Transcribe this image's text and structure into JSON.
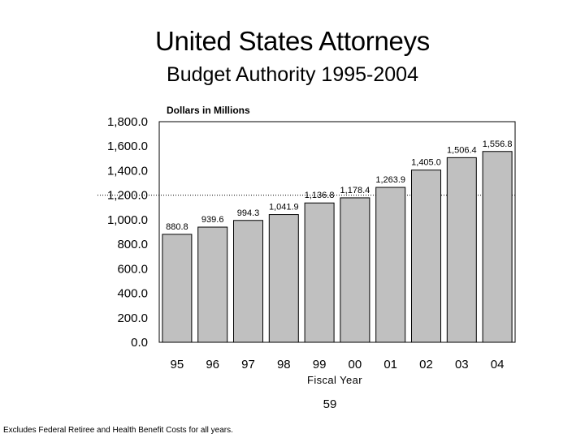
{
  "slide": {
    "title": "United States Attorneys",
    "page_number": "59",
    "footnote": "Excludes Federal Retiree and Health Benefit Costs for all years."
  },
  "chart_data": {
    "type": "bar",
    "title": "United States Attorneys",
    "subtitle": "Budget Authority 1995-2004",
    "units_label": "Dollars in Millions",
    "xlabel": "Fiscal Year",
    "ylabel": "",
    "categories": [
      "95",
      "96",
      "97",
      "98",
      "99",
      "00",
      "01",
      "02",
      "03",
      "04"
    ],
    "values": [
      880.8,
      939.6,
      994.3,
      1041.9,
      1136.8,
      1178.4,
      1263.9,
      1405.0,
      1506.4,
      1556.8
    ],
    "value_labels": [
      "880.8",
      "939.6",
      "994.3",
      "1,041.9",
      "1,136.8",
      "1,178.4",
      "1,263.9",
      "1,405.0",
      "1,506.4",
      "1,556.8"
    ],
    "ylim": [
      0,
      1800
    ],
    "yticks": [
      0,
      200,
      400,
      600,
      800,
      1000,
      1200,
      1400,
      1600,
      1800
    ],
    "ytick_labels": [
      "0.0",
      "200.0",
      "400.0",
      "600.0",
      "800.0",
      "1,000.0",
      "1,200.0",
      "1,400.0",
      "1,600.0",
      "1,800.0"
    ],
    "reference_line": 1200,
    "grid": false,
    "legend": "none",
    "colors": {
      "bar_fill": "#c0c0c0",
      "bar_stroke": "#000000",
      "plot_border": "#000000"
    }
  }
}
